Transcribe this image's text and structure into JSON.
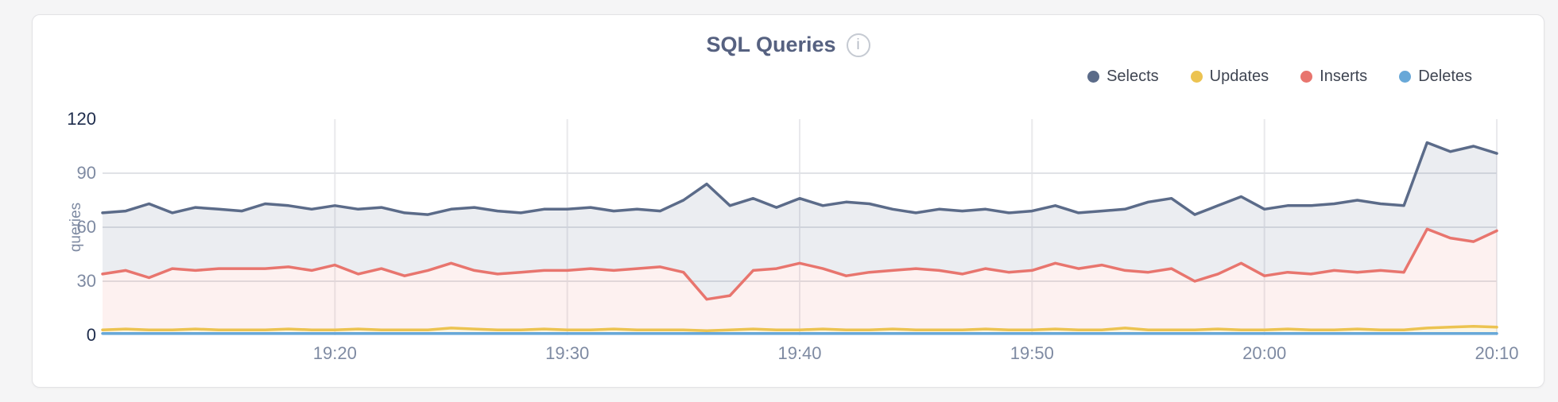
{
  "card": {
    "title": "SQL Queries",
    "info_glyph": "i"
  },
  "legend": [
    {
      "label": "Selects",
      "color": "#5b6b89"
    },
    {
      "label": "Updates",
      "color": "#ecc351"
    },
    {
      "label": "Inserts",
      "color": "#e8756e"
    },
    {
      "label": "Deletes",
      "color": "#68a8d8"
    }
  ],
  "chart_data": {
    "type": "area",
    "title": "SQL Queries",
    "ylabel": "queries",
    "ylim": [
      0,
      120
    ],
    "yticks": [
      0,
      30,
      60,
      90,
      120
    ],
    "strong_yticks": [
      0,
      120
    ],
    "xticks": [
      "19:20",
      "19:30",
      "19:40",
      "19:50",
      "20:00",
      "20:10"
    ],
    "x_start": "19:10",
    "x_end": "20:10",
    "x_interval_minutes": 1,
    "grid": true,
    "legend_position": "top-right",
    "series": [
      {
        "name": "Selects",
        "color": "#5b6b89",
        "fill": "rgba(92,107,139,0.12)",
        "values": [
          68,
          69,
          73,
          68,
          71,
          70,
          69,
          73,
          72,
          70,
          72,
          70,
          71,
          68,
          67,
          70,
          71,
          69,
          68,
          70,
          70,
          71,
          69,
          70,
          69,
          75,
          84,
          72,
          76,
          71,
          76,
          72,
          74,
          73,
          70,
          68,
          70,
          69,
          70,
          68,
          69,
          72,
          68,
          69,
          70,
          74,
          76,
          67,
          72,
          77,
          70,
          72,
          72,
          73,
          75,
          73,
          72,
          107,
          102,
          105,
          101
        ]
      },
      {
        "name": "Inserts",
        "color": "#e8756e",
        "fill": "rgba(232,117,110,0.10)",
        "values": [
          34,
          36,
          32,
          37,
          36,
          37,
          37,
          37,
          38,
          36,
          39,
          34,
          37,
          33,
          36,
          40,
          36,
          34,
          35,
          36,
          36,
          37,
          36,
          37,
          38,
          35,
          20,
          22,
          36,
          37,
          40,
          37,
          33,
          35,
          36,
          37,
          36,
          34,
          37,
          35,
          36,
          40,
          37,
          39,
          36,
          35,
          37,
          30,
          34,
          40,
          33,
          35,
          34,
          36,
          35,
          36,
          35,
          59,
          54,
          52,
          58
        ]
      },
      {
        "name": "Updates",
        "color": "#ecc351",
        "fill": "rgba(236,195,81,0.15)",
        "values": [
          3,
          3.5,
          3,
          3,
          3.5,
          3,
          3,
          3,
          3.5,
          3,
          3,
          3.5,
          3,
          3,
          3,
          4,
          3.5,
          3,
          3,
          3.5,
          3,
          3,
          3.5,
          3,
          3,
          3,
          2.5,
          3,
          3.5,
          3,
          3,
          3.5,
          3,
          3,
          3.5,
          3,
          3,
          3,
          3.5,
          3,
          3,
          3.5,
          3,
          3,
          4,
          3,
          3,
          3,
          3.5,
          3,
          3,
          3.5,
          3,
          3,
          3.5,
          3,
          3,
          4,
          4.5,
          5,
          4.5
        ]
      },
      {
        "name": "Deletes",
        "color": "#68a8d8",
        "fill": "rgba(104,168,216,0.18)",
        "values": [
          1,
          1,
          1,
          1,
          1,
          1,
          1,
          1,
          1,
          1,
          1,
          1,
          1,
          1,
          1,
          1,
          1,
          1,
          1,
          1,
          1,
          1,
          1,
          1,
          1,
          1,
          1,
          1,
          1,
          1,
          1,
          1,
          1,
          1,
          1,
          1,
          1,
          1,
          1,
          1,
          1,
          1,
          1,
          1,
          1,
          1,
          1,
          1,
          1,
          1,
          1,
          1,
          1,
          1,
          1,
          1,
          1,
          1,
          1,
          1,
          1
        ]
      }
    ]
  }
}
